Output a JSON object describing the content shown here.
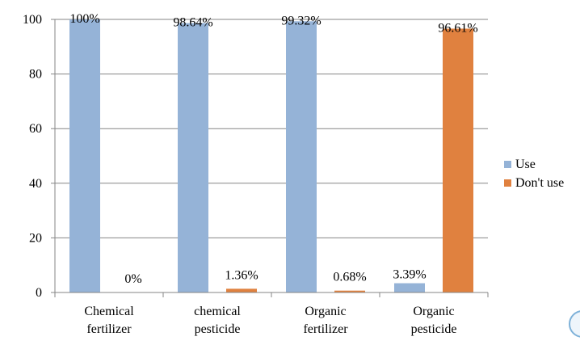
{
  "chart_data": {
    "type": "bar",
    "title": "",
    "xlabel": "",
    "ylabel": "",
    "categories": [
      [
        "Chemical",
        "fertilizer"
      ],
      [
        "chemical",
        "pesticide"
      ],
      [
        "Organic",
        "fertilizer"
      ],
      [
        "Organic",
        "pesticide"
      ]
    ],
    "series": [
      {
        "name": "Use",
        "color": "#95b3d7",
        "values": [
          100,
          98.64,
          99.32,
          3.39
        ],
        "labels": [
          "100%",
          "98.64%",
          "99.32%",
          "3.39%"
        ]
      },
      {
        "name": "Don't use",
        "color": "#e0813f",
        "values": [
          0,
          1.36,
          0.68,
          96.61
        ],
        "labels": [
          "0%",
          "1.36%",
          "0.68%",
          "96.61%"
        ]
      }
    ],
    "ylim": [
      0,
      100
    ],
    "yticks": [
      0,
      20,
      40,
      60,
      80,
      100
    ],
    "grid": true,
    "legend_position": "right"
  }
}
